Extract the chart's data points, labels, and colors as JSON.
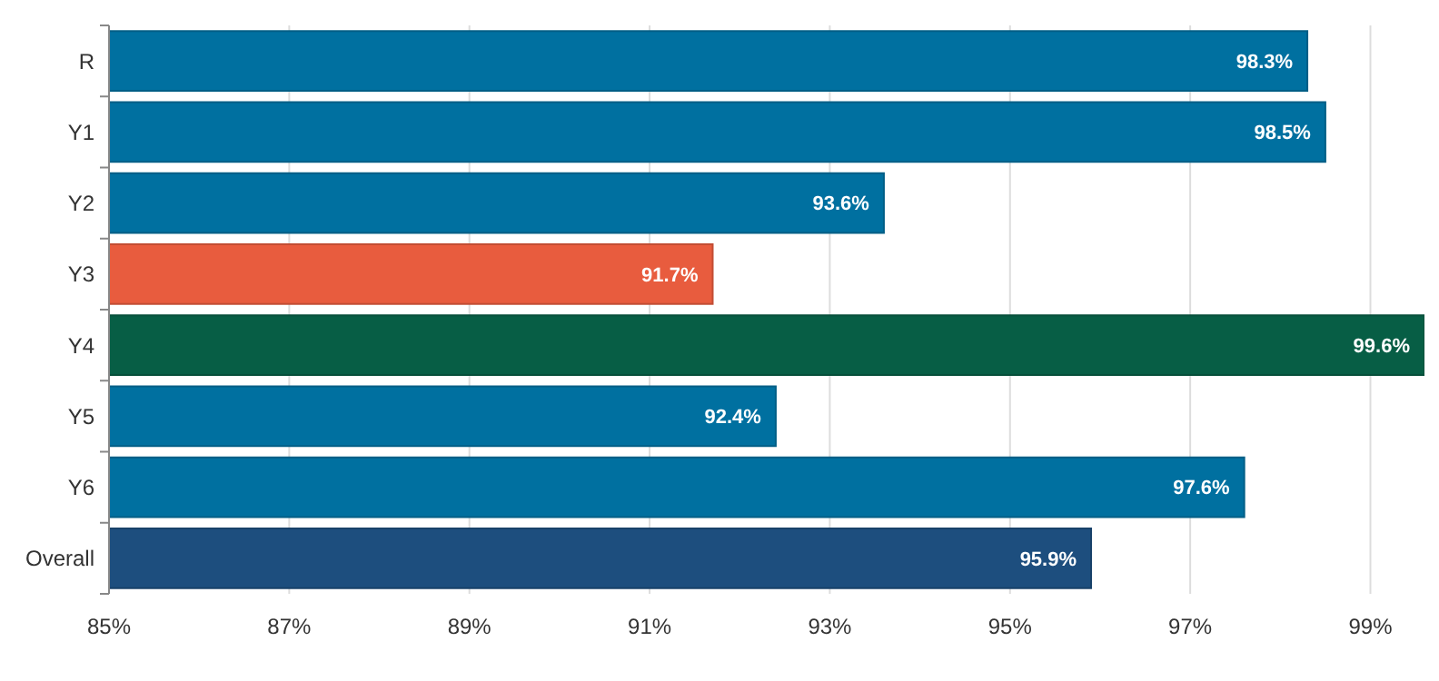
{
  "chart_data": {
    "type": "bar",
    "orientation": "horizontal",
    "categories": [
      "R",
      "Y1",
      "Y2",
      "Y3",
      "Y4",
      "Y5",
      "Y6",
      "Overall"
    ],
    "values": [
      98.3,
      98.5,
      93.6,
      91.7,
      99.6,
      92.4,
      97.6,
      95.9
    ],
    "colors": [
      "#0070a0",
      "#0070a0",
      "#0070a0",
      "#e85c3e",
      "#075e45",
      "#0070a0",
      "#0070a0",
      "#1d4e7e"
    ],
    "value_labels": [
      "98.3%",
      "98.5%",
      "93.6%",
      "91.7%",
      "99.6%",
      "92.4%",
      "97.6%",
      "95.9%"
    ],
    "xlim": [
      85,
      99.6
    ],
    "xticks": [
      {
        "value": 85,
        "label": "85%"
      },
      {
        "value": 87,
        "label": "87%"
      },
      {
        "value": 89,
        "label": "89%"
      },
      {
        "value": 91,
        "label": "91%"
      },
      {
        "value": 93,
        "label": "93%"
      },
      {
        "value": 95,
        "label": "95%"
      },
      {
        "value": 97,
        "label": "97%"
      },
      {
        "value": 99,
        "label": "99%"
      }
    ],
    "grid": "x"
  }
}
